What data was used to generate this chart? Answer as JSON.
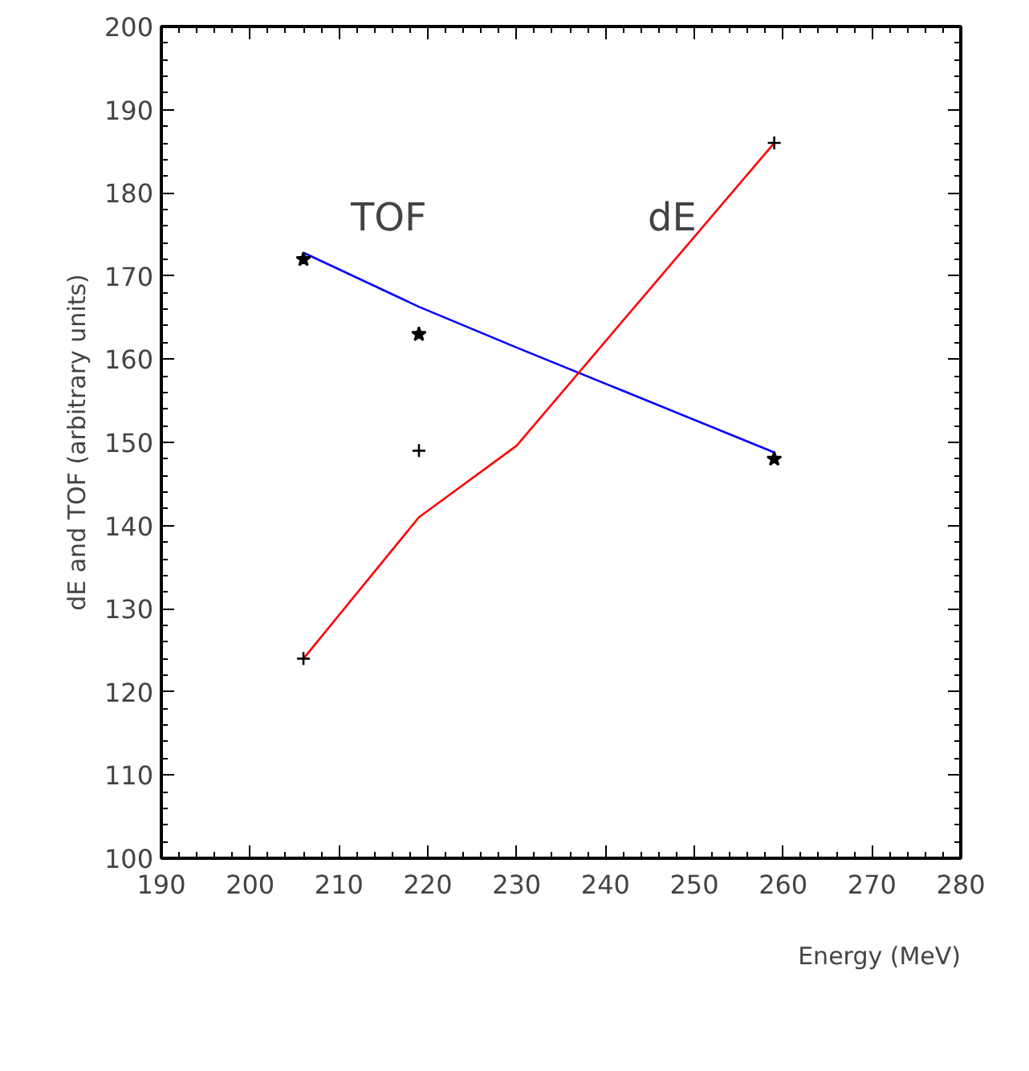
{
  "chart_data": {
    "type": "line",
    "xlabel": "Energy (MeV)",
    "ylabel": "dE and TOF (arbitrary units)",
    "xlim": [
      190,
      280
    ],
    "xticks": [
      190,
      200,
      210,
      220,
      230,
      240,
      250,
      260,
      270,
      280
    ],
    "ylim": [
      100,
      200
    ],
    "yticks": [
      100,
      110,
      120,
      130,
      140,
      150,
      160,
      170,
      180,
      190,
      200
    ],
    "grid": false,
    "series": [
      {
        "color": "#0000ff",
        "x": [
          206,
          219,
          230,
          259
        ],
        "values": [
          172.8,
          166.3,
          161.4,
          148.8
        ],
        "marker": "none"
      },
      {
        "color": "#ff0000",
        "x": [
          206,
          219,
          230,
          259
        ],
        "values": [
          124,
          141,
          149.6,
          186
        ],
        "marker": "none"
      },
      {
        "type": "scatter",
        "color": "#000000",
        "x": [
          206,
          219,
          259
        ],
        "values": [
          172,
          163,
          148
        ],
        "marker": "star"
      },
      {
        "type": "scatter",
        "color": "#000000",
        "x": [
          206,
          219,
          259
        ],
        "values": [
          124,
          149,
          186
        ],
        "marker": "cross"
      }
    ],
    "annotations": [
      "TOF",
      "dE"
    ]
  }
}
